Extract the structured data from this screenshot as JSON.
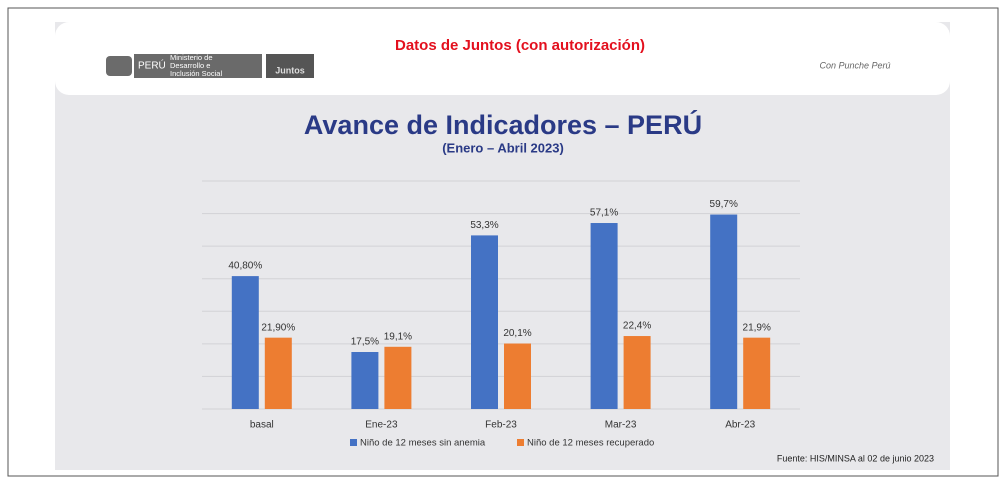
{
  "header": {
    "title": "Datos de Juntos (con autorización)",
    "logos": [
      "PERÚ",
      "Ministerio de Desarrollo e Inclusión Social",
      "Juntos",
      "Con Punche Perú"
    ]
  },
  "chart_data": {
    "type": "bar",
    "title": "Avance de Indicadores – PERÚ",
    "subtitle": "(Enero – Abril  2023)",
    "categories": [
      "basal",
      "Ene-23",
      "Feb-23",
      "Mar-23",
      "Abr-23"
    ],
    "series": [
      {
        "name": "Niño de 12 meses sin anemia",
        "color": "#4472c4",
        "values": [
          40.8,
          17.5,
          53.3,
          57.1,
          59.7
        ],
        "value_labels": [
          "40,80%",
          "17,5%",
          "53,3%",
          "57,1%",
          "59,7%"
        ]
      },
      {
        "name": "Niño de 12 meses recuperado",
        "color": "#ed7d31",
        "values": [
          21.9,
          19.1,
          20.1,
          22.4,
          21.9
        ],
        "value_labels": [
          "21,90%",
          "19,1%",
          "20,1%",
          "22,4%",
          "21,9%"
        ]
      }
    ],
    "ylim": [
      0,
      70
    ],
    "yticks": [
      0,
      10,
      20,
      30,
      40,
      50,
      60,
      70
    ],
    "grid": true,
    "source": "Fuente: HIS/MINSA al 02 de junio 2023"
  }
}
